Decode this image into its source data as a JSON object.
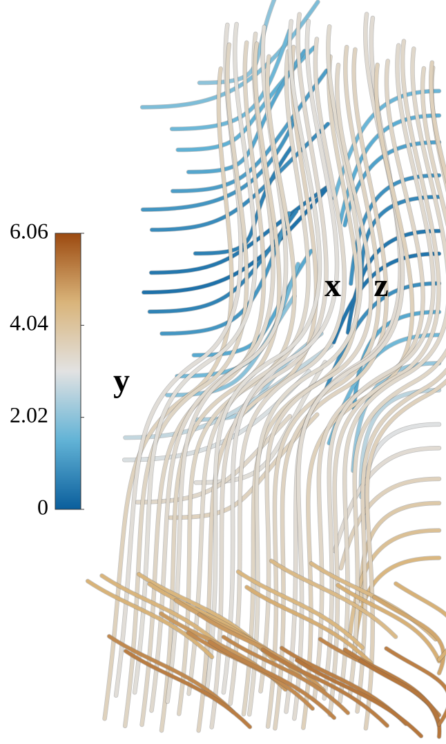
{
  "chart_data": {
    "type": "streamlines",
    "axis_labels": {
      "x": "x",
      "y": "y",
      "z": "z"
    },
    "colorbar": {
      "clim": [
        0,
        6.06
      ],
      "ticks": [
        0,
        2.02,
        4.04,
        6.06
      ],
      "colormap": [
        "#0a5e9c",
        "#62b3d6",
        "#e2e2e2",
        "#d9b47a",
        "#9c4a10"
      ]
    }
  }
}
